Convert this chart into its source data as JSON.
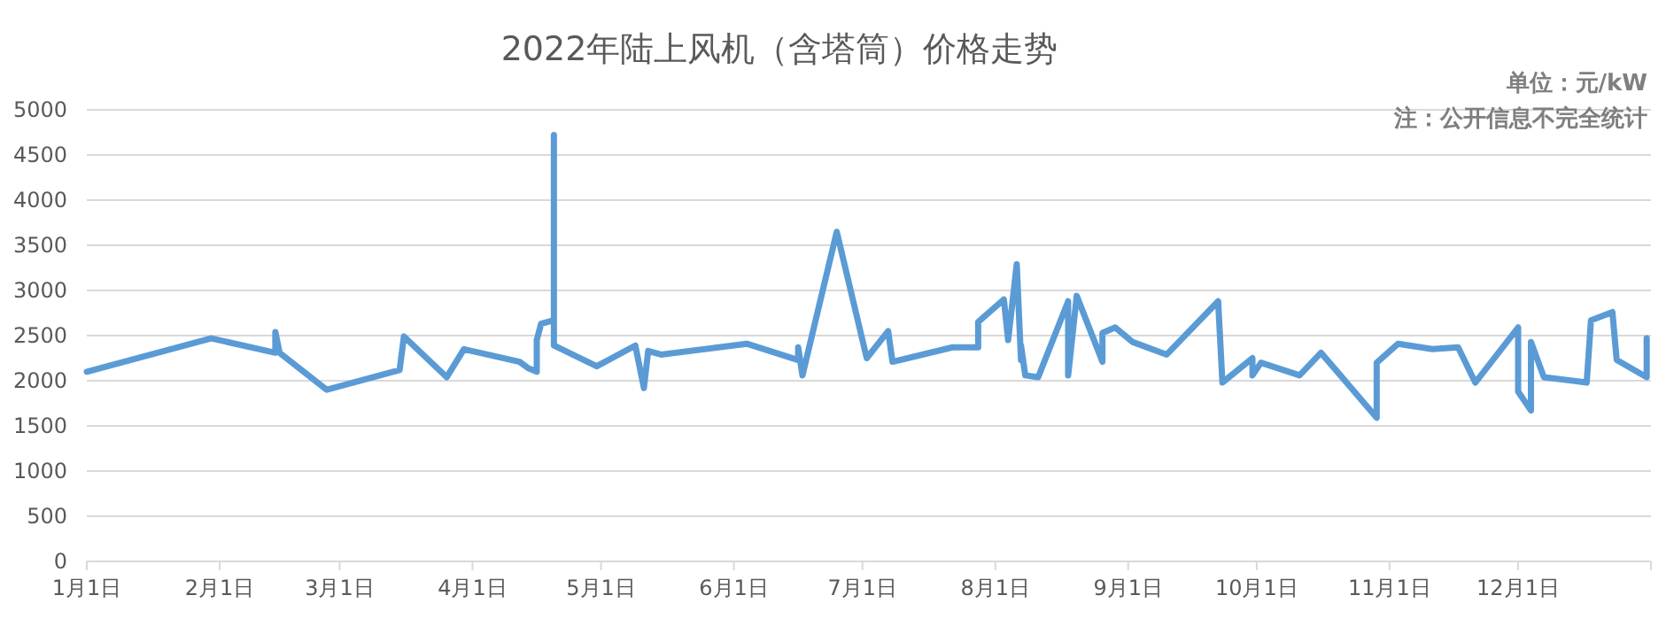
{
  "chart_data": {
    "type": "line",
    "title": "2022年陆上风机（含塔筒）价格走势",
    "annotations": [
      "单位：元/kW",
      "注：公开信息不完全统计"
    ],
    "x": [
      "2022-01-01",
      "2022-01-30",
      "2022-02-14",
      "2022-02-14",
      "2022-02-15",
      "2022-02-26",
      "2022-03-15",
      "2022-03-16",
      "2022-03-26",
      "2022-03-30",
      "2022-04-12",
      "2022-04-14",
      "2022-04-16",
      "2022-04-16",
      "2022-04-17",
      "2022-04-20",
      "2022-04-20",
      "2022-04-20",
      "2022-04-30",
      "2022-05-09",
      "2022-05-11",
      "2022-05-12",
      "2022-05-15",
      "2022-06-04",
      "2022-06-16",
      "2022-06-16",
      "2022-06-17",
      "2022-06-25",
      "2022-07-02",
      "2022-07-07",
      "2022-07-08",
      "2022-07-22",
      "2022-07-28",
      "2022-07-28",
      "2022-08-03",
      "2022-08-04",
      "2022-08-06",
      "2022-08-07",
      "2022-08-07",
      "2022-08-08",
      "2022-08-11",
      "2022-08-18",
      "2022-08-18",
      "2022-08-20",
      "2022-08-26",
      "2022-08-26",
      "2022-08-29",
      "2022-09-02",
      "2022-09-10",
      "2022-09-22",
      "2022-09-23",
      "2022-09-30",
      "2022-09-30",
      "2022-10-02",
      "2022-10-11",
      "2022-10-16",
      "2022-10-29",
      "2022-10-29",
      "2022-11-03",
      "2022-11-11",
      "2022-11-17",
      "2022-11-21",
      "2022-12-01",
      "2022-12-01",
      "2022-12-04",
      "2022-12-04",
      "2022-12-07",
      "2022-12-17",
      "2022-12-18",
      "2022-12-23",
      "2022-12-24",
      "2022-12-31",
      "2022-12-31"
    ],
    "series": [
      {
        "color": "#5b9bd5",
        "values": [
          2100,
          2470,
          2310,
          2540,
          2310,
          1900,
          2120,
          2490,
          2040,
          2350,
          2210,
          2140,
          2100,
          2450,
          2630,
          2670,
          4720,
          2390,
          2160,
          2390,
          1920,
          2330,
          2290,
          2410,
          2230,
          2370,
          2060,
          3650,
          2250,
          2550,
          2210,
          2370,
          2370,
          2650,
          2900,
          2450,
          3290,
          2230,
          2390,
          2060,
          2040,
          2880,
          2060,
          2940,
          2210,
          2530,
          2590,
          2430,
          2290,
          2880,
          1980,
          2250,
          2060,
          2200,
          2060,
          2310,
          1590,
          2200,
          2410,
          2350,
          2370,
          1980,
          2590,
          1880,
          1670,
          2430,
          2040,
          1980,
          2670,
          2760,
          2230,
          2040,
          2470
        ]
      }
    ],
    "xlim": [
      "2022-01-01",
      "2023-01-01"
    ],
    "xticks": [
      {
        "value": "2022-01-01",
        "label": "1月1日"
      },
      {
        "value": "2022-02-01",
        "label": "2月1日"
      },
      {
        "value": "2022-03-01",
        "label": "3月1日"
      },
      {
        "value": "2022-04-01",
        "label": "4月1日"
      },
      {
        "value": "2022-05-01",
        "label": "5月1日"
      },
      {
        "value": "2022-06-01",
        "label": "6月1日"
      },
      {
        "value": "2022-07-01",
        "label": "7月1日"
      },
      {
        "value": "2022-08-01",
        "label": "8月1日"
      },
      {
        "value": "2022-09-01",
        "label": "9月1日"
      },
      {
        "value": "2022-10-01",
        "label": "10月1日"
      },
      {
        "value": "2022-11-01",
        "label": "11月1日"
      },
      {
        "value": "2022-12-01",
        "label": "12月1日"
      }
    ],
    "ylim": [
      0,
      5000
    ],
    "yticks": [
      0,
      500,
      1000,
      1500,
      2000,
      2500,
      3000,
      3500,
      4000,
      4500,
      5000
    ],
    "grid": "y",
    "marker": "none",
    "line_style": "solid"
  }
}
